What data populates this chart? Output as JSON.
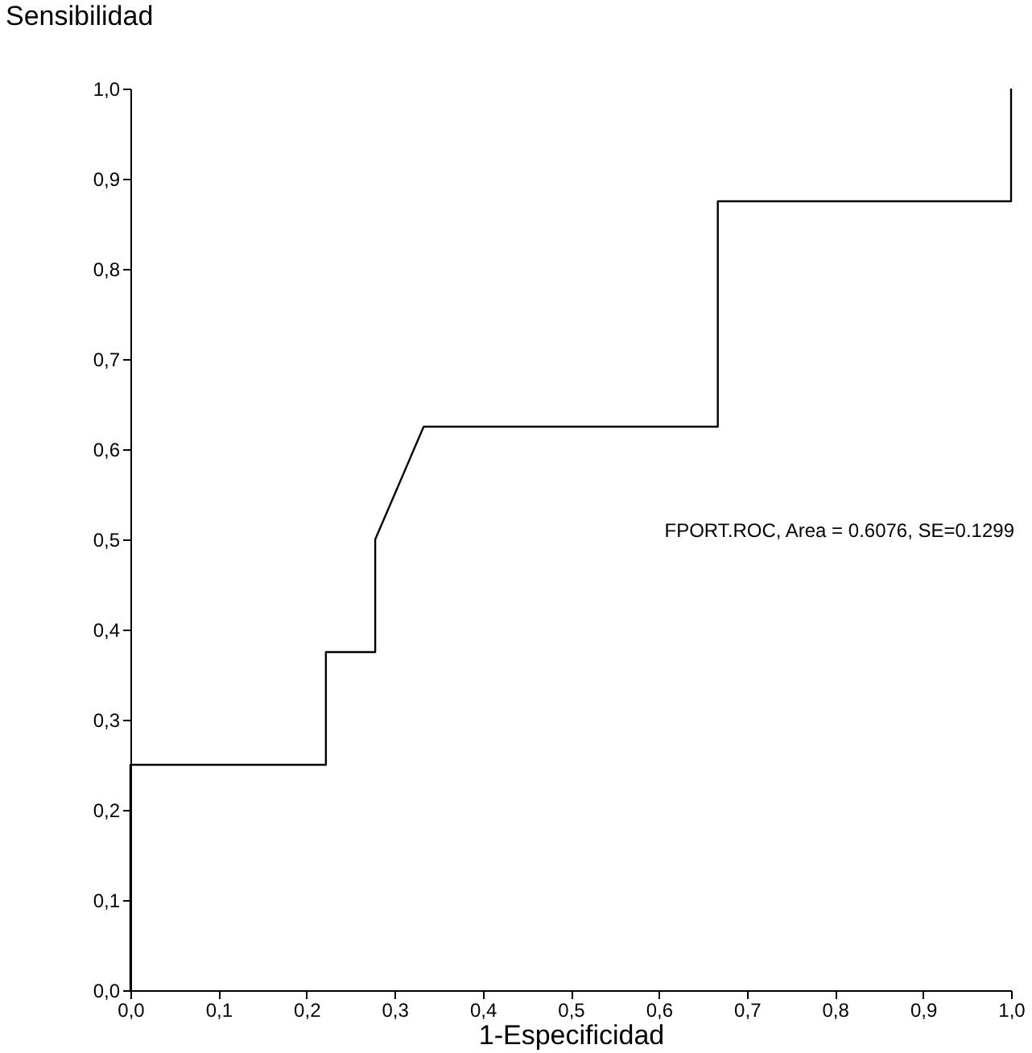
{
  "chart_data": {
    "type": "step",
    "xlabel": "1-Especificidad",
    "ylabel": "Sensibilidad",
    "xlim": [
      0,
      1
    ],
    "ylim": [
      0,
      1
    ],
    "xticks": [
      {
        "value": 0,
        "label": "0,0"
      },
      {
        "value": 0.1,
        "label": "0,1"
      },
      {
        "value": 0.2,
        "label": "0,2"
      },
      {
        "value": 0.3,
        "label": "0,3"
      },
      {
        "value": 0.4,
        "label": "0,4"
      },
      {
        "value": 0.5,
        "label": "0,5"
      },
      {
        "value": 0.6,
        "label": "0,6"
      },
      {
        "value": 0.7,
        "label": "0,7"
      },
      {
        "value": 0.8,
        "label": "0,8"
      },
      {
        "value": 0.9,
        "label": "0,9"
      },
      {
        "value": 1,
        "label": "1,0"
      }
    ],
    "yticks": [
      {
        "value": 0,
        "label": "0,0"
      },
      {
        "value": 0.1,
        "label": "0,1"
      },
      {
        "value": 0.2,
        "label": "0,2"
      },
      {
        "value": 0.3,
        "label": "0,3"
      },
      {
        "value": 0.4,
        "label": "0,4"
      },
      {
        "value": 0.5,
        "label": "0,5"
      },
      {
        "value": 0.6,
        "label": "0,6"
      },
      {
        "value": 0.7,
        "label": "0,7"
      },
      {
        "value": 0.8,
        "label": "0,8"
      },
      {
        "value": 0.9,
        "label": "0,9"
      },
      {
        "value": 1,
        "label": "1,0"
      }
    ],
    "grid": false,
    "series": [
      {
        "name": "FPORT.ROC, Area = 0.6076, SE=0.1299",
        "color": "#000000",
        "x": [
          0,
          0,
          0.222,
          0.222,
          0.278,
          0.278,
          0.333,
          0.667,
          0.667,
          1,
          1
        ],
        "values": [
          0,
          0.25,
          0.25,
          0.375,
          0.375,
          0.5,
          0.625,
          0.625,
          0.875,
          0.875,
          1
        ]
      }
    ]
  }
}
